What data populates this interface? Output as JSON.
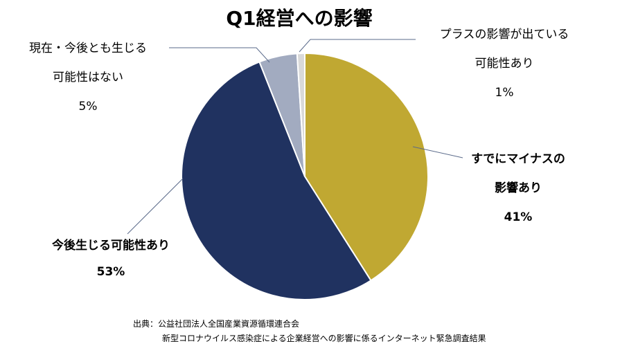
{
  "chart_data": {
    "type": "pie",
    "title": "Q1経営への影響",
    "slices": [
      {
        "lines": [
          "すでにマイナスの",
          "影響あり"
        ],
        "value": 41,
        "value_label": "41%",
        "color": "#C0A832",
        "bold": true
      },
      {
        "lines": [
          "今後生じる可能性あり"
        ],
        "value": 53,
        "value_label": "53%",
        "color": "#203260",
        "bold": true
      },
      {
        "lines": [
          "現在・今後とも生じる",
          "可能性はない"
        ],
        "value": 5,
        "value_label": "5%",
        "color": "#A2ABC0",
        "bold": false
      },
      {
        "lines": [
          "プラスの影響が出ている",
          "可能性あり"
        ],
        "value": 1,
        "value_label": "1%",
        "color": "#D9D9D9",
        "bold": false
      }
    ],
    "legend": "none"
  },
  "source": {
    "line1": "出典：公益社団法人全国産業資源循環連合会",
    "line2": "新型コロナウイルス感染症による企業経営への影響に係るインターネット緊急調査結果"
  }
}
